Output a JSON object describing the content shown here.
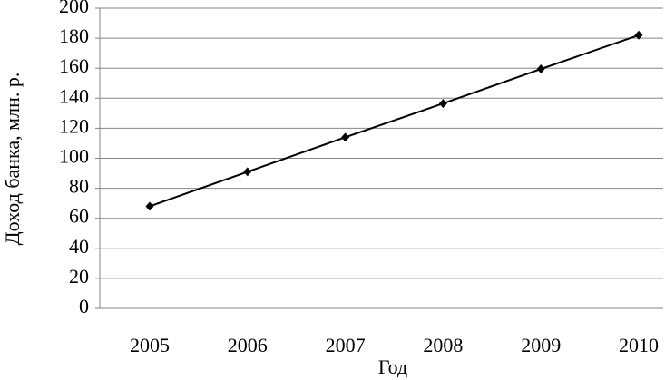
{
  "chart_data": {
    "type": "line",
    "x_label": "Год",
    "y_label": "Доход банка, млн. р.",
    "categories": [
      "2005",
      "2006",
      "2007",
      "2008",
      "2009",
      "2010"
    ],
    "series": [
      {
        "name": "Доход банка",
        "color": "#000000",
        "values": [
          68,
          91,
          114,
          136.5,
          159.5,
          182
        ]
      }
    ],
    "ylim": [
      0,
      200
    ],
    "yticks": [
      0,
      20,
      40,
      60,
      80,
      100,
      120,
      140,
      160,
      180,
      200
    ],
    "grid": true
  }
}
